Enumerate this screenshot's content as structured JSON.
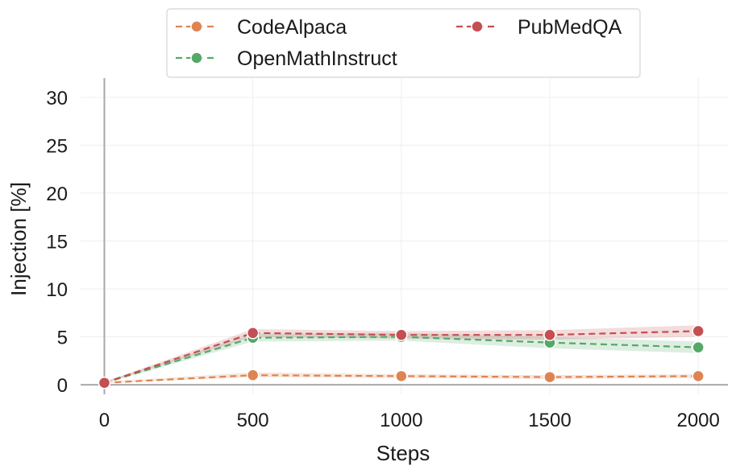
{
  "chart_data": {
    "type": "line",
    "xlabel": "Steps",
    "ylabel": "Injection [%]",
    "x": [
      0,
      500,
      1000,
      1500,
      2000
    ],
    "xticks": [
      "0",
      "500",
      "1000",
      "1500",
      "2000"
    ],
    "yticks": [
      "0",
      "5",
      "10",
      "15",
      "20",
      "25",
      "30"
    ],
    "xlim": [
      -80,
      2100
    ],
    "ylim": [
      -1,
      32
    ],
    "grid": true,
    "legend_position": "top",
    "series": [
      {
        "name": "CodeAlpaca",
        "color": "#dd8452",
        "values": [
          0.2,
          1.0,
          0.9,
          0.8,
          0.9
        ],
        "lower": [
          0.15,
          0.8,
          0.7,
          0.6,
          0.7
        ],
        "upper": [
          0.3,
          1.3,
          1.1,
          1.0,
          1.1
        ]
      },
      {
        "name": "OpenMathInstruct",
        "color": "#55a868",
        "values": [
          0.2,
          4.9,
          5.0,
          4.4,
          3.9
        ],
        "lower": [
          0.15,
          4.5,
          4.6,
          3.8,
          3.3
        ],
        "upper": [
          0.3,
          5.3,
          5.4,
          5.0,
          4.5
        ]
      },
      {
        "name": "PubMedQA",
        "color": "#c44e52",
        "values": [
          0.2,
          5.4,
          5.2,
          5.2,
          5.6
        ],
        "lower": [
          0.15,
          5.0,
          4.8,
          4.7,
          5.0
        ],
        "upper": [
          0.3,
          5.8,
          5.6,
          5.7,
          6.2
        ]
      }
    ]
  }
}
